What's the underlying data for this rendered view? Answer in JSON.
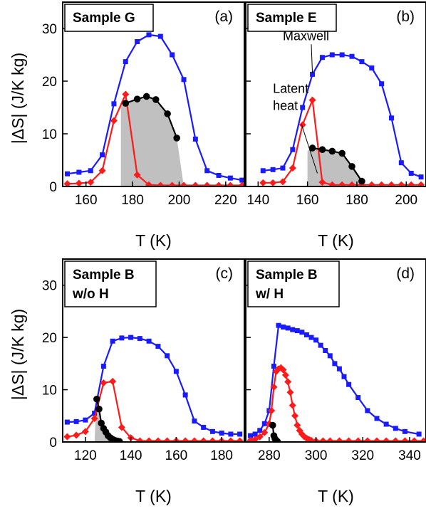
{
  "figure": {
    "ylabel": "|ΔS| (J/K kg)",
    "colors": {
      "maxwell": "#1a1aff",
      "latent": "#ff1a1a",
      "black": "#000000",
      "fill": "#c0c0c0"
    }
  },
  "chart_data": [
    {
      "type": "line",
      "panel": "(a)",
      "sample_label": [
        "Sample G"
      ],
      "xlabel": "T (K)",
      "ylabel": "|ΔS| (J/K kg)",
      "xlim": [
        150,
        228
      ],
      "ylim": [
        0,
        35
      ],
      "xticks": [
        160,
        180,
        200,
        220
      ],
      "yticks": [
        0,
        10,
        20,
        30
      ],
      "annotations": [],
      "series": [
        {
          "color": "blue",
          "marker": "square",
          "x": [
            152,
            157,
            162,
            167,
            172,
            177,
            182,
            187,
            192,
            197,
            202,
            207,
            212,
            217,
            222,
            227
          ],
          "y": [
            2.4,
            2.7,
            3.0,
            6.0,
            15.7,
            23.7,
            27.5,
            28.8,
            28.5,
            25.0,
            20.3,
            9.0,
            3.0,
            2.1,
            1.6,
            1.2
          ]
        },
        {
          "color": "red",
          "marker": "diamond",
          "x": [
            152,
            157,
            162,
            167,
            172,
            177,
            182,
            187,
            192,
            197,
            202,
            207,
            212,
            217,
            222,
            227
          ],
          "y": [
            0.5,
            0.6,
            0.8,
            3.0,
            12.5,
            17.5,
            2.2,
            0.3,
            0.2,
            0.2,
            0.2,
            0.2,
            0.2,
            0.2,
            0.2,
            0.2
          ]
        },
        {
          "color": "black",
          "marker": "circle",
          "x": [
            177,
            182,
            186,
            190,
            195,
            199
          ],
          "y": [
            15.8,
            16.6,
            17.1,
            16.5,
            13.8,
            9.2
          ]
        }
      ],
      "shaded_region": {
        "x": [
          175,
          175,
          177,
          182,
          186,
          190,
          195,
          199,
          202
        ],
        "y": [
          0,
          15.2,
          15.8,
          16.6,
          17.1,
          16.5,
          13.8,
          9.2,
          0
        ]
      }
    },
    {
      "type": "line",
      "panel": "(b)",
      "sample_label": [
        "Sample E"
      ],
      "xlabel": "T (K)",
      "ylabel": "",
      "xlim": [
        135,
        208
      ],
      "ylim": [
        0,
        35
      ],
      "xticks": [
        140,
        160,
        180,
        200
      ],
      "yticks": [
        0,
        10,
        20,
        30
      ],
      "annotations": [
        {
          "text": [
            "Maxwell"
          ],
          "anchor": [
            150,
            27.8
          ],
          "target": [
            162,
            21.5
          ]
        },
        {
          "text": [
            "Latent",
            "heat"
          ],
          "anchor": [
            146,
            17.8
          ],
          "target": [
            164,
            2.5
          ]
        }
      ],
      "series": [
        {
          "color": "blue",
          "marker": "square",
          "x": [
            142,
            146,
            150,
            154,
            158,
            162,
            166,
            170,
            174,
            178,
            182,
            186,
            190,
            194,
            198,
            202,
            206
          ],
          "y": [
            3.0,
            3.2,
            3.5,
            7.0,
            15.0,
            21.3,
            24.5,
            25.0,
            25.0,
            24.7,
            23.7,
            22.5,
            19.5,
            13.0,
            4.5,
            2.5,
            1.8
          ]
        },
        {
          "color": "red",
          "marker": "diamond",
          "x": [
            142,
            146,
            150,
            154,
            158,
            162,
            166,
            170,
            174,
            178,
            182,
            186,
            190,
            194,
            198,
            202,
            206
          ],
          "y": [
            0.7,
            0.7,
            0.9,
            3.5,
            11.7,
            16.4,
            0.8,
            0.3,
            0.3,
            0.3,
            0.3,
            0.3,
            0.3,
            0.3,
            0.3,
            0.3,
            0.3
          ]
        },
        {
          "color": "black",
          "marker": "circle",
          "x": [
            162,
            166,
            170,
            174,
            178,
            182
          ],
          "y": [
            7.3,
            7.0,
            6.7,
            6.3,
            3.8,
            1.0
          ]
        }
      ],
      "shaded_region": {
        "x": [
          160,
          160,
          162,
          166,
          170,
          174,
          178,
          182,
          184
        ],
        "y": [
          0,
          6.8,
          7.3,
          7.0,
          6.7,
          6.3,
          3.8,
          1.0,
          0
        ]
      }
    },
    {
      "type": "line",
      "panel": "(c)",
      "sample_label": [
        "Sample B",
        "w/o H"
      ],
      "xlabel": "T (K)",
      "ylabel": "|ΔS| (J/K kg)",
      "xlim": [
        110,
        190
      ],
      "ylim": [
        0,
        35
      ],
      "xticks": [
        120,
        140,
        160,
        180
      ],
      "yticks": [
        0,
        10,
        20,
        30
      ],
      "annotations": [],
      "series": [
        {
          "color": "blue",
          "marker": "square",
          "x": [
            112,
            116,
            120,
            124,
            128,
            132,
            136,
            140,
            144,
            148,
            152,
            156,
            160,
            164,
            168,
            172,
            176,
            180,
            184,
            188
          ],
          "y": [
            3.8,
            3.9,
            4.2,
            5.5,
            14.5,
            19.3,
            19.9,
            20.0,
            19.8,
            19.3,
            18.3,
            16.5,
            13.5,
            9.0,
            4.0,
            2.8,
            2.0,
            1.7,
            1.5,
            1.5
          ]
        },
        {
          "color": "red",
          "marker": "diamond",
          "x": [
            112,
            116,
            120,
            124,
            128,
            132,
            136,
            140,
            144,
            148,
            152,
            156,
            160,
            164,
            168,
            172,
            176,
            180,
            184,
            188
          ],
          "y": [
            1.0,
            1.3,
            2.0,
            4.5,
            11.3,
            11.6,
            2.8,
            0.8,
            0.2,
            0.2,
            0.2,
            0.2,
            0.2,
            0.2,
            0.2,
            0.2,
            0.2,
            0.2,
            0.2,
            0.2
          ]
        },
        {
          "color": "black",
          "marker": "circle",
          "x": [
            125,
            126,
            127,
            128,
            129,
            130,
            131,
            132,
            133,
            134,
            135
          ],
          "y": [
            8.2,
            6.3,
            3.6,
            2.6,
            1.9,
            1.2,
            0.8,
            0.5,
            0.3,
            0.2,
            0.1
          ]
        }
      ],
      "shaded_region": {
        "x": [
          124,
          125,
          126,
          127,
          128,
          129,
          130,
          131,
          132,
          133,
          134,
          135
        ],
        "y": [
          0,
          8.2,
          6.3,
          3.6,
          2.6,
          1.9,
          1.2,
          0.8,
          0.5,
          0.3,
          0.2,
          0
        ]
      }
    },
    {
      "type": "line",
      "panel": "(d)",
      "sample_label": [
        "Sample B",
        "w/ H"
      ],
      "xlabel": "T (K)",
      "ylabel": "",
      "xlim": [
        270,
        347
      ],
      "ylim": [
        0,
        35
      ],
      "xticks": [
        280,
        300,
        320,
        340
      ],
      "yticks": [
        0,
        10,
        20,
        30
      ],
      "annotations": [],
      "series": [
        {
          "color": "blue",
          "marker": "square",
          "x": [
            272,
            274,
            276,
            278,
            280,
            282,
            284,
            286,
            288,
            290,
            292,
            294,
            296,
            298,
            300,
            302,
            304,
            306,
            308,
            310,
            312,
            314,
            318,
            322,
            326,
            330,
            334,
            338,
            344
          ],
          "y": [
            1.2,
            1.5,
            2.2,
            3.5,
            6.0,
            14.5,
            22.3,
            22.0,
            21.8,
            21.5,
            21.3,
            21.0,
            20.5,
            20.0,
            19.5,
            18.5,
            17.5,
            16.5,
            15.0,
            14.0,
            12.5,
            11.0,
            8.5,
            6.0,
            4.5,
            3.4,
            2.6,
            2.0,
            1.5
          ]
        },
        {
          "color": "red",
          "marker": "diamond",
          "x": [
            272,
            274,
            276,
            278,
            280,
            281,
            282,
            283,
            284,
            285,
            286,
            287,
            288,
            289,
            290,
            291,
            292,
            293,
            294,
            295,
            296,
            297,
            298,
            300,
            303,
            306,
            310,
            314,
            318,
            322,
            326,
            330,
            334,
            338,
            342,
            346
          ],
          "y": [
            0.3,
            0.5,
            1.0,
            1.8,
            3.5,
            6.0,
            10.5,
            13.5,
            14.0,
            14.2,
            13.8,
            12.8,
            11.5,
            9.5,
            7.0,
            5.0,
            3.2,
            2.2,
            1.5,
            1.0,
            0.7,
            0.5,
            0.3,
            0.2,
            0.2,
            0.2,
            0.2,
            0.2,
            0.2,
            0.2,
            0.2,
            0.2,
            0.2,
            0.2,
            0.2,
            0.2
          ]
        },
        {
          "color": "black",
          "marker": "circle",
          "x": [
            281.5,
            282,
            282.5,
            283,
            283.5
          ],
          "y": [
            3.2,
            1.2,
            0.6,
            0.3,
            0.1
          ]
        }
      ],
      "shaded_region": null
    }
  ]
}
